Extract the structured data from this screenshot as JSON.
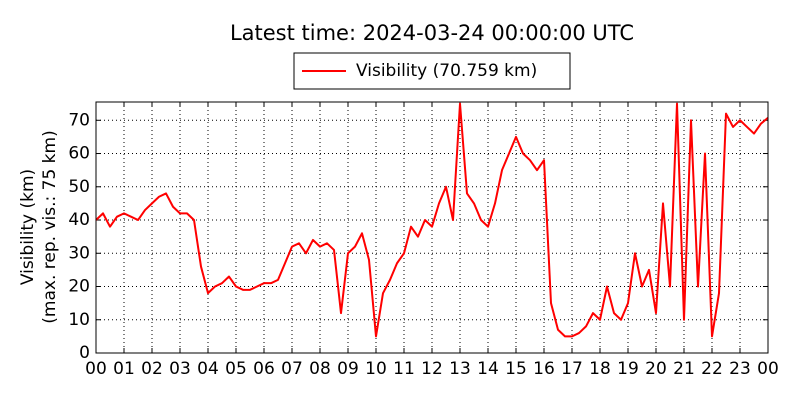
{
  "chart_data": {
    "type": "line",
    "title": "Latest time: 2024-03-24 00:00:00 UTC",
    "y_label": [
      "Visibility (km)",
      "(max. rep. vis.: 75 km)"
    ],
    "x": [
      0,
      0.25,
      0.5,
      0.75,
      1,
      1.25,
      1.5,
      1.75,
      2,
      2.25,
      2.5,
      2.75,
      3,
      3.25,
      3.5,
      3.75,
      4,
      4.25,
      4.5,
      4.75,
      5,
      5.25,
      5.5,
      5.75,
      6,
      6.25,
      6.5,
      6.75,
      7,
      7.25,
      7.5,
      7.75,
      8,
      8.25,
      8.5,
      8.75,
      9,
      9.25,
      9.5,
      9.75,
      10,
      10.25,
      10.5,
      10.75,
      11,
      11.25,
      11.5,
      11.75,
      12,
      12.25,
      12.5,
      12.75,
      13,
      13.25,
      13.5,
      13.75,
      14,
      14.25,
      14.5,
      14.75,
      15,
      15.25,
      15.5,
      15.75,
      16,
      16.25,
      16.5,
      16.75,
      17,
      17.25,
      17.5,
      17.75,
      18,
      18.25,
      18.5,
      18.75,
      19,
      19.25,
      19.5,
      19.75,
      20,
      20.25,
      20.5,
      20.75,
      21,
      21.25,
      21.5,
      21.75,
      22,
      22.25,
      22.5,
      22.75,
      23,
      23.25,
      23.5,
      23.75,
      24
    ],
    "series": [
      {
        "name": "Visibility (70.759 km)",
        "color": "#ff0000",
        "values": [
          40,
          42,
          38,
          41,
          42,
          41,
          40,
          43,
          45,
          47,
          48,
          44,
          42,
          42,
          40,
          26,
          18,
          20,
          21,
          23,
          20,
          19,
          19,
          20,
          21,
          21,
          22,
          27,
          32,
          33,
          30,
          34,
          32,
          33,
          31,
          12,
          30,
          32,
          36,
          28,
          5,
          18,
          22,
          27,
          30,
          38,
          35,
          40,
          38,
          45,
          50,
          40,
          75,
          48,
          45,
          40,
          38,
          45,
          55,
          60,
          65,
          60,
          58,
          55,
          58,
          15,
          7,
          5,
          5,
          6,
          8,
          12,
          10,
          20,
          12,
          10,
          15,
          30,
          20,
          25,
          12,
          45,
          20,
          75,
          10,
          70,
          20,
          60,
          5,
          18,
          72,
          68,
          70,
          68,
          66,
          69,
          70.759
        ]
      }
    ],
    "xlim": [
      0,
      24
    ],
    "ylim": [
      0,
      75.5
    ],
    "xticks": [
      {
        "value": 0,
        "label": "00"
      },
      {
        "value": 1,
        "label": "01"
      },
      {
        "value": 2,
        "label": "02"
      },
      {
        "value": 3,
        "label": "03"
      },
      {
        "value": 4,
        "label": "04"
      },
      {
        "value": 5,
        "label": "05"
      },
      {
        "value": 6,
        "label": "06"
      },
      {
        "value": 7,
        "label": "07"
      },
      {
        "value": 8,
        "label": "08"
      },
      {
        "value": 9,
        "label": "09"
      },
      {
        "value": 10,
        "label": "10"
      },
      {
        "value": 11,
        "label": "11"
      },
      {
        "value": 12,
        "label": "12"
      },
      {
        "value": 13,
        "label": "13"
      },
      {
        "value": 14,
        "label": "14"
      },
      {
        "value": 15,
        "label": "15"
      },
      {
        "value": 16,
        "label": "16"
      },
      {
        "value": 17,
        "label": "17"
      },
      {
        "value": 18,
        "label": "18"
      },
      {
        "value": 19,
        "label": "19"
      },
      {
        "value": 20,
        "label": "20"
      },
      {
        "value": 21,
        "label": "21"
      },
      {
        "value": 22,
        "label": "22"
      },
      {
        "value": 23,
        "label": "23"
      },
      {
        "value": 24,
        "label": "00"
      }
    ],
    "yticks": [
      0,
      10,
      20,
      30,
      40,
      50,
      60,
      70
    ],
    "grid": true
  }
}
